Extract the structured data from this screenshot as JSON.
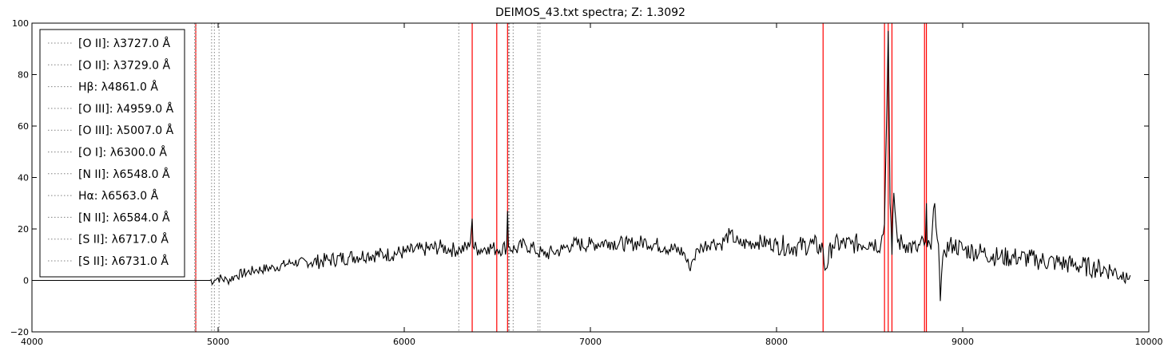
{
  "chart_data": {
    "type": "line",
    "title": "DEIMOS_43.txt spectra; Z: 1.3092",
    "xlabel": "",
    "ylabel": "",
    "xlim": [
      4000,
      10000
    ],
    "ylim": [
      -20,
      100
    ],
    "x_ticks": [
      4000,
      5000,
      6000,
      7000,
      8000,
      9000,
      10000
    ],
    "y_ticks": [
      -20,
      0,
      20,
      40,
      60,
      80,
      100
    ],
    "x_tick_labels": [
      "4000",
      "5000",
      "6000",
      "7000",
      "8000",
      "9000",
      "10000"
    ],
    "y_tick_labels": [
      "−20",
      "0",
      "20",
      "40",
      "60",
      "80",
      "100"
    ],
    "grid": false,
    "legend_position": "upper left",
    "colors": {
      "spectrum": "#000000",
      "sky_lines": "#ff0000",
      "emission_lines": "#808080"
    },
    "spectrum": {
      "x": [
        4000,
        4870,
        4880,
        4900,
        4920,
        4950,
        4980,
        5000,
        5050,
        5100,
        5200,
        5300,
        5400,
        5500,
        5600,
        5700,
        5800,
        5900,
        6000,
        6100,
        6200,
        6250,
        6300,
        6350,
        6365,
        6370,
        6400,
        6450,
        6500,
        6550,
        6555,
        6560,
        6600,
        6650,
        6700,
        6750,
        6800,
        6850,
        6900,
        7000,
        7100,
        7200,
        7300,
        7400,
        7500,
        7530,
        7550,
        7580,
        7600,
        7650,
        7700,
        7750,
        7800,
        7900,
        8000,
        8100,
        8200,
        8250,
        8260,
        8300,
        8400,
        8500,
        8560,
        8580,
        8600,
        8610,
        8620,
        8630,
        8650,
        8700,
        8750,
        8800,
        8805,
        8810,
        8830,
        8850,
        8870,
        8880,
        8900,
        8950,
        9000,
        9100,
        9200,
        9300,
        9400,
        9500,
        9600,
        9700,
        9800,
        9850,
        9880,
        9900
      ],
      "y": [
        0,
        0,
        0,
        0,
        0,
        0,
        0,
        1,
        0,
        2,
        4,
        5,
        7,
        7,
        8,
        9,
        10,
        10,
        11,
        12,
        13,
        12,
        12,
        13,
        24,
        13,
        12,
        13,
        12,
        13,
        27,
        13,
        12,
        14,
        12,
        10,
        11,
        12,
        14,
        14,
        15,
        14,
        15,
        13,
        11,
        5,
        8,
        12,
        13,
        15,
        14,
        18,
        14,
        15,
        14,
        13,
        14,
        12,
        4,
        14,
        14,
        15,
        14,
        22,
        97,
        30,
        10,
        34,
        15,
        14,
        12,
        15,
        30,
        13,
        12,
        30,
        14,
        -8,
        12,
        14,
        12,
        11,
        9,
        9,
        8,
        7,
        6,
        5,
        4,
        2,
        3,
        2
      ]
    },
    "sky_lines_x": [
      4880,
      6365,
      6497,
      6555,
      8250,
      8580,
      8600,
      8620,
      8795,
      8805
    ],
    "emission_lines": [
      {
        "label": "[O II]: λ3727.0 Å",
        "x": 4874
      },
      {
        "label": "[O II]: λ3729.0 Å",
        "x": 4880
      },
      {
        "label": "Hβ: λ4861.0 Å",
        "x": 4965
      },
      {
        "label": "[O III]: λ4959.0 Å",
        "x": 4980
      },
      {
        "label": "[O III]: λ5007.0 Å",
        "x": 5005
      },
      {
        "label": "[O I]: λ6300.0 Å",
        "x": 6293
      },
      {
        "label": "[N II]: λ6548.0 Å",
        "x": 6560
      },
      {
        "label": "Hα: λ6563.0 Å",
        "x": 6565
      },
      {
        "label": "[N II]: λ6584.0 Å",
        "x": 6585
      },
      {
        "label": "[S II]: λ6717.0 Å",
        "x": 6718
      },
      {
        "label": "[S II]: λ6731.0 Å",
        "x": 6729
      }
    ]
  }
}
